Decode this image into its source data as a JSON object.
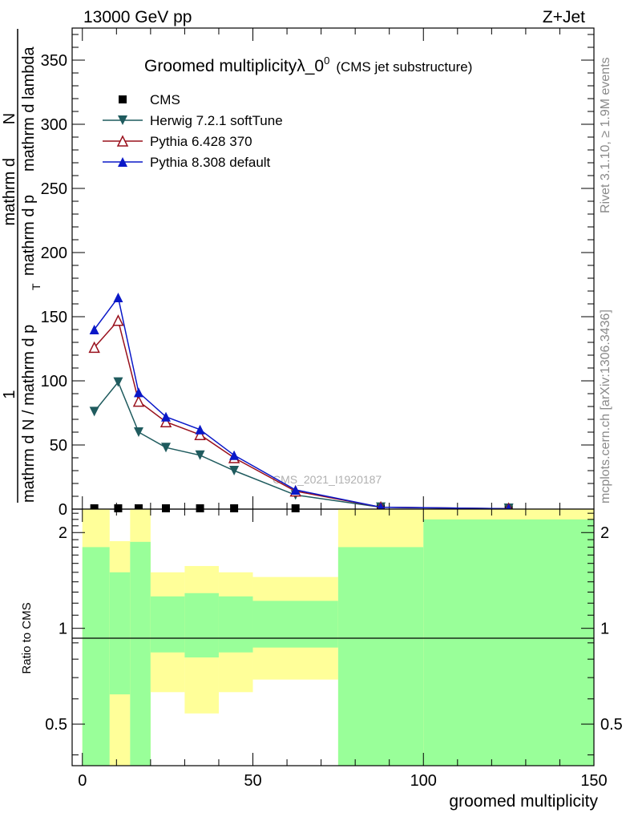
{
  "header": {
    "left_label": "13000 GeV pp",
    "right_label": "Z+Jet"
  },
  "side_labels": {
    "rivet": "Rivet 3.1.10, ≥ 1.9M events",
    "mcplots": "mcplots.cern.ch [arXiv:1306.3436]"
  },
  "watermark": "CMS_2021_I1920187",
  "chart_data": [
    {
      "type": "line",
      "title": "Groomed multiplicityλ_0",
      "title_superscript": "0",
      "subtitle": "(CMS jet substructure)",
      "ylabel_line1": "1",
      "ylabel_line2a": "mathrm d N / mathrm d p",
      "ylabel_line2b": "mathrm d p",
      "ylabel_line2c": "mathrm d lambda",
      "ylabel_sub_T": "T",
      "ylabel_mathrm_d": "mathrm d",
      "ylabel_N": "N",
      "xlim": [
        -3,
        150
      ],
      "ylim": [
        0,
        375
      ],
      "yticks": [
        0,
        50,
        100,
        150,
        200,
        250,
        300,
        350
      ],
      "legend_position": "top-left",
      "series": [
        {
          "name": "CMS",
          "marker": "square",
          "color": "#000000",
          "x": [
            3.5,
            10.5,
            16.5,
            24.5,
            34.5,
            44.5,
            62.5,
            87.5,
            125
          ],
          "y": [
            0.5,
            0.5,
            0.4,
            0.3,
            0.2,
            0.1,
            0.05,
            0.02,
            0.01
          ]
        },
        {
          "name": "Herwig 7.2.1 softTune",
          "marker": "triangle-down",
          "color": "#1f5b5e",
          "x": [
            3.5,
            10.5,
            16.5,
            24.5,
            34.5,
            44.5,
            62.5,
            87.5,
            125
          ],
          "y": [
            76,
            99,
            60,
            48,
            42,
            30,
            11,
            1.5,
            0.3
          ]
        },
        {
          "name": "Pythia 6.428 370",
          "marker": "triangle-up-open",
          "color": "#99101c",
          "x": [
            3.5,
            10.5,
            16.5,
            24.5,
            34.5,
            44.5,
            62.5,
            87.5,
            125
          ],
          "y": [
            126,
            147,
            84,
            68,
            58,
            40,
            14,
            1.5,
            0.3
          ]
        },
        {
          "name": "Pythia 8.308 default",
          "marker": "triangle-up",
          "color": "#0a18c8",
          "x": [
            3.5,
            10.5,
            16.5,
            24.5,
            34.5,
            44.5,
            62.5,
            87.5,
            125
          ],
          "y": [
            140,
            165,
            91,
            72,
            62,
            42,
            15,
            1.5,
            0.3
          ]
        }
      ]
    },
    {
      "type": "area",
      "ylabel": "Ratio to CMS",
      "xlabel": "groomed multiplicity",
      "log_scale_y": true,
      "xlim": [
        -3,
        150
      ],
      "ylim": [
        0.37,
        2.37
      ],
      "xticks": [
        0,
        50,
        100,
        150
      ],
      "yticks": [
        0.5,
        1,
        2
      ],
      "band_colors": {
        "outer": "#ffff99",
        "inner": "#99ff99"
      },
      "bins": [
        {
          "lo": 0,
          "hi": 8,
          "outer": [
            0.37,
            2.37
          ],
          "inner": [
            0.37,
            1.8
          ]
        },
        {
          "lo": 8,
          "hi": 14,
          "outer": [
            0.37,
            1.88
          ],
          "inner": [
            0.62,
            1.5
          ]
        },
        {
          "lo": 14,
          "hi": 20,
          "outer": [
            0.37,
            2.37
          ],
          "inner": [
            0.37,
            1.87
          ]
        },
        {
          "lo": 20,
          "hi": 30,
          "outer": [
            0.63,
            1.5
          ],
          "inner": [
            0.84,
            1.26
          ]
        },
        {
          "lo": 30,
          "hi": 40,
          "outer": [
            0.54,
            1.57
          ],
          "inner": [
            0.81,
            1.29
          ]
        },
        {
          "lo": 40,
          "hi": 50,
          "outer": [
            0.63,
            1.5
          ],
          "inner": [
            0.84,
            1.26
          ]
        },
        {
          "lo": 50,
          "hi": 75,
          "outer": [
            0.69,
            1.45
          ],
          "inner": [
            0.87,
            1.22
          ]
        },
        {
          "lo": 75,
          "hi": 100,
          "outer": [
            0.37,
            2.37
          ],
          "inner": [
            0.37,
            1.8
          ]
        },
        {
          "lo": 100,
          "hi": 150,
          "outer": [
            0.37,
            2.37
          ],
          "inner": [
            0.37,
            2.2
          ]
        }
      ]
    }
  ]
}
